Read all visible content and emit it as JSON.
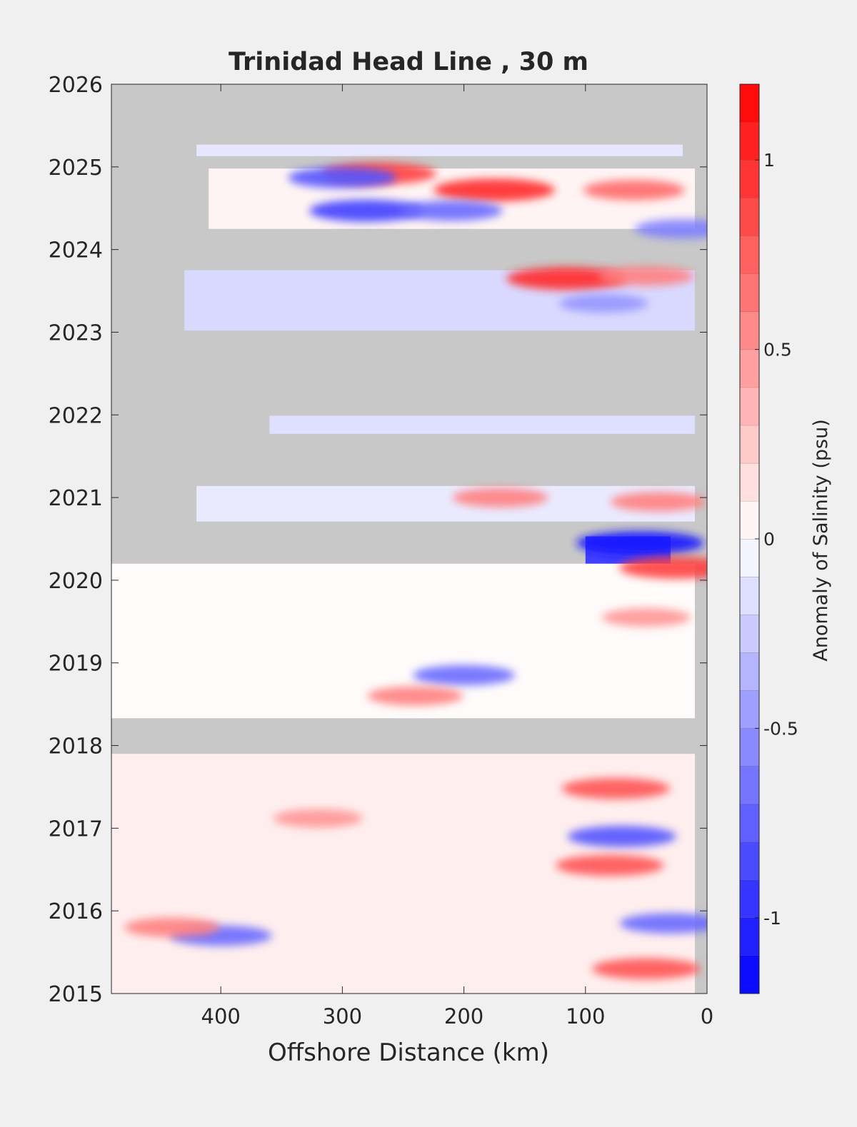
{
  "chart_data": {
    "type": "heatmap",
    "title": "Trinidad Head Line , 30 m",
    "xlabel": "Offshore Distance (km)",
    "ylabel": "",
    "xlim": [
      490,
      0
    ],
    "ylim": [
      2015,
      2026
    ],
    "x_ticks": [
      "400",
      "300",
      "200",
      "100",
      "0"
    ],
    "x_tick_values": [
      400,
      300,
      200,
      100,
      0
    ],
    "y_ticks": [
      "2015",
      "2016",
      "2017",
      "2018",
      "2019",
      "2020",
      "2021",
      "2022",
      "2023",
      "2024",
      "2025",
      "2026"
    ],
    "y_tick_values": [
      2015,
      2016,
      2017,
      2018,
      2019,
      2020,
      2021,
      2022,
      2023,
      2024,
      2025,
      2026
    ],
    "no_data_color": "#c8c8c8",
    "colorbar": {
      "label": "Anomaly of Salinity (psu)",
      "range": [
        -1.2,
        1.2
      ],
      "levels": 24,
      "tick_labels": [
        "-1",
        "-0.5",
        "0",
        "0.5",
        "1"
      ],
      "tick_values": [
        -1,
        -0.5,
        0,
        0.5,
        1
      ],
      "negative_color": "#0000ff",
      "positive_color": "#ff0000",
      "zero_color": "#ffffff"
    },
    "data_rows": [
      {
        "t_start": 2025.13,
        "t_end": 2025.27,
        "x_max": 420,
        "x_min": 20,
        "mean_anomaly": -0.12
      },
      {
        "t_start": 2024.25,
        "t_end": 2024.98,
        "x_max": 410,
        "x_min": 10,
        "mean_anomaly": 0.05
      },
      {
        "t_start": 2023.02,
        "t_end": 2023.75,
        "x_max": 430,
        "x_min": 10,
        "mean_anomaly": -0.18
      },
      {
        "t_start": 2021.77,
        "t_end": 2021.99,
        "x_max": 360,
        "x_min": 10,
        "mean_anomaly": -0.15
      },
      {
        "t_start": 2020.71,
        "t_end": 2021.14,
        "x_max": 420,
        "x_min": 10,
        "mean_anomaly": -0.1
      },
      {
        "t_start": 2020.15,
        "t_end": 2020.53,
        "x_max": 100,
        "x_min": 30,
        "mean_anomaly": -0.9
      },
      {
        "t_start": 2018.33,
        "t_end": 2020.2,
        "x_max": 490,
        "x_min": 10,
        "mean_anomaly": 0.02
      },
      {
        "t_start": 2015.0,
        "t_end": 2017.9,
        "x_max": 490,
        "x_min": 10,
        "mean_anomaly": 0.08
      }
    ],
    "anomaly_features": [
      {
        "t": 2024.72,
        "x": 175,
        "value": 1.0
      },
      {
        "t": 2024.92,
        "x": 270,
        "value": 0.9
      },
      {
        "t": 2024.87,
        "x": 300,
        "value": -0.8
      },
      {
        "t": 2024.47,
        "x": 280,
        "value": -0.9
      },
      {
        "t": 2024.47,
        "x": 210,
        "value": -0.7
      },
      {
        "t": 2024.72,
        "x": 60,
        "value": 0.7
      },
      {
        "t": 2024.25,
        "x": 20,
        "value": -0.6
      },
      {
        "t": 2023.65,
        "x": 115,
        "value": 1.0
      },
      {
        "t": 2023.68,
        "x": 50,
        "value": 0.6
      },
      {
        "t": 2023.35,
        "x": 85,
        "value": -0.5
      },
      {
        "t": 2021.0,
        "x": 170,
        "value": 0.6
      },
      {
        "t": 2020.95,
        "x": 40,
        "value": 0.6
      },
      {
        "t": 2020.45,
        "x": 55,
        "value": -1.1
      },
      {
        "t": 2020.15,
        "x": 25,
        "value": 0.9
      },
      {
        "t": 2019.55,
        "x": 50,
        "value": 0.5
      },
      {
        "t": 2018.85,
        "x": 200,
        "value": -0.7
      },
      {
        "t": 2018.6,
        "x": 240,
        "value": 0.6
      },
      {
        "t": 2017.48,
        "x": 75,
        "value": 0.8
      },
      {
        "t": 2017.12,
        "x": 320,
        "value": 0.5
      },
      {
        "t": 2016.9,
        "x": 70,
        "value": -0.8
      },
      {
        "t": 2016.55,
        "x": 80,
        "value": 0.8
      },
      {
        "t": 2015.85,
        "x": 30,
        "value": -0.7
      },
      {
        "t": 2015.7,
        "x": 400,
        "value": -0.7
      },
      {
        "t": 2015.8,
        "x": 440,
        "value": 0.6
      },
      {
        "t": 2015.3,
        "x": 50,
        "value": 0.8
      }
    ]
  }
}
